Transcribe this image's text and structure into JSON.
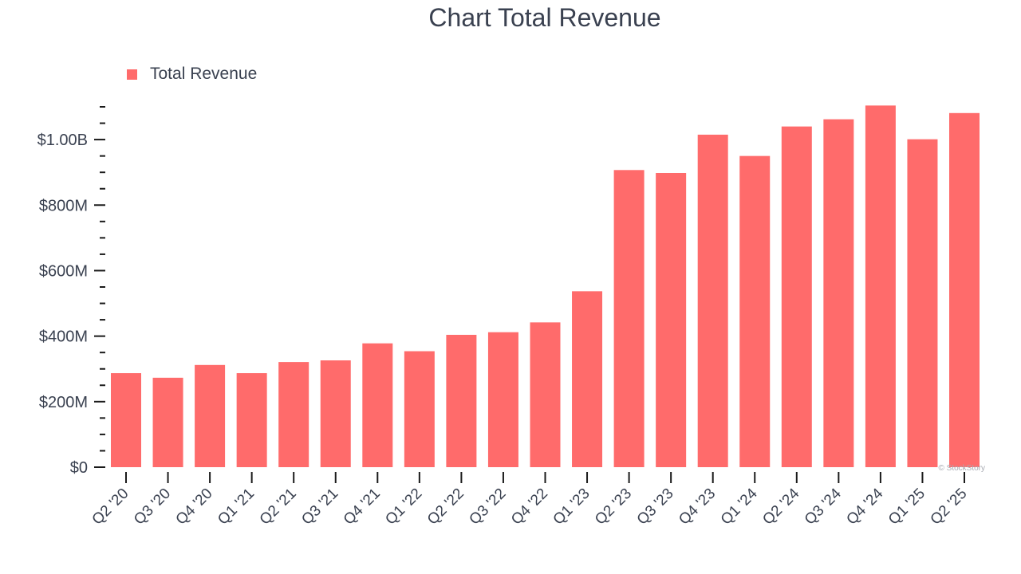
{
  "chart_data": {
    "type": "bar",
    "title": "Chart Total Revenue",
    "xlabel": "",
    "ylabel": "",
    "ylim": [
      0,
      1100
    ],
    "value_unit": "millions USD",
    "legend": {
      "position": "top-left"
    },
    "categories": [
      "Q2 '20",
      "Q3 '20",
      "Q4 '20",
      "Q1 '21",
      "Q2 '21",
      "Q3 '21",
      "Q4 '21",
      "Q1 '22",
      "Q2 '22",
      "Q3 '22",
      "Q4 '22",
      "Q1 '23",
      "Q2 '23",
      "Q3 '23",
      "Q4 '23",
      "Q1 '24",
      "Q2 '24",
      "Q3 '24",
      "Q4 '24",
      "Q1 '25",
      "Q2 '25"
    ],
    "series": [
      {
        "name": "Total Revenue",
        "color": "#ff6b6b",
        "values": [
          287,
          273,
          312,
          287,
          321,
          326,
          378,
          354,
          404,
          412,
          442,
          537,
          907,
          898,
          1015,
          950,
          1040,
          1062,
          1104,
          1001,
          1081
        ]
      }
    ],
    "y_ticks": [
      {
        "value": 0,
        "label": "$0"
      },
      {
        "value": 200,
        "label": "$200M"
      },
      {
        "value": 400,
        "label": "$400M"
      },
      {
        "value": 600,
        "label": "$600M"
      },
      {
        "value": 800,
        "label": "$800M"
      },
      {
        "value": 1000,
        "label": "$1.00B"
      }
    ],
    "y_minor_step": 50
  },
  "watermark": "© StockStory",
  "colors": {
    "text": "#3a4150",
    "axis": "#1a1a1a",
    "watermark": "#a8abb2"
  }
}
